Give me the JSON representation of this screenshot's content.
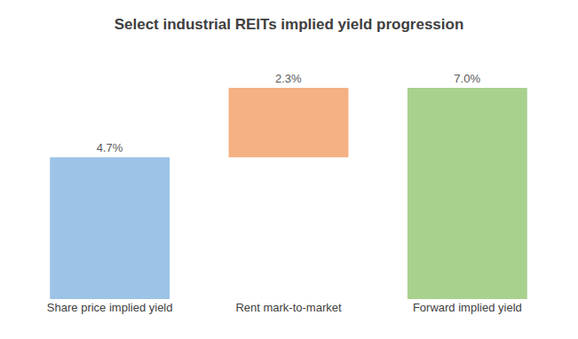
{
  "chart_data": {
    "type": "waterfall",
    "title": "Select industrial REITs implied yield progression",
    "categories": [
      "Share price implied yield",
      "Rent mark-to-market",
      "Forward implied yield"
    ],
    "values": [
      4.7,
      2.3,
      7.0
    ],
    "value_labels": [
      "4.7%",
      "2.3%",
      "7.0%"
    ],
    "colors": [
      "#9dc3e6",
      "#f4b183",
      "#a9d18e"
    ],
    "ylim": [
      0,
      7.0
    ],
    "grid": false,
    "data_labels": true,
    "tick_labels": "x"
  }
}
